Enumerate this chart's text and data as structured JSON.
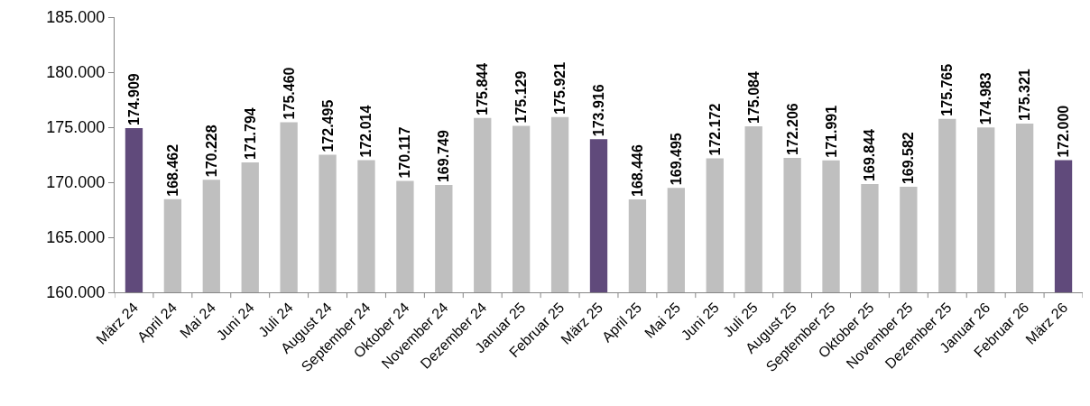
{
  "chart_data": {
    "type": "bar",
    "categories": [
      "März 24",
      "April 24",
      "Mai 24",
      "Juni 24",
      "Juli 24",
      "August 24",
      "September 24",
      "Oktober 24",
      "November 24",
      "Dezember 24",
      "Januar 25",
      "Februar 25",
      "März 25",
      "April 25",
      "Mai 25",
      "Juni 25",
      "Juli 25",
      "August 25",
      "September 25",
      "Oktober 25",
      "November 25",
      "Dezember 25",
      "Januar 26",
      "Februar 26",
      "März 26"
    ],
    "values": [
      174909,
      168462,
      170228,
      171794,
      175460,
      172495,
      172014,
      170117,
      169749,
      175844,
      175129,
      175921,
      173916,
      168446,
      169495,
      172172,
      175084,
      172206,
      171991,
      169844,
      169582,
      175765,
      174983,
      175321,
      172000
    ],
    "value_labels": [
      "174.909",
      "168.462",
      "170.228",
      "171.794",
      "175.460",
      "172.495",
      "172.014",
      "170.117",
      "169.749",
      "175.844",
      "175.129",
      "175.921",
      "173.916",
      "168.446",
      "169.495",
      "172.172",
      "175.084",
      "172.206",
      "171.991",
      "169.844",
      "169.582",
      "175.765",
      "174.983",
      "175.321",
      "172.000"
    ],
    "colors": [
      "#604a7b",
      "#bfbfbf",
      "#bfbfbf",
      "#bfbfbf",
      "#bfbfbf",
      "#bfbfbf",
      "#bfbfbf",
      "#bfbfbf",
      "#bfbfbf",
      "#bfbfbf",
      "#bfbfbf",
      "#bfbfbf",
      "#604a7b",
      "#bfbfbf",
      "#bfbfbf",
      "#bfbfbf",
      "#bfbfbf",
      "#bfbfbf",
      "#bfbfbf",
      "#bfbfbf",
      "#bfbfbf",
      "#bfbfbf",
      "#bfbfbf",
      "#bfbfbf",
      "#604a7b"
    ],
    "ylim": [
      160000,
      185000
    ],
    "yticks": [
      {
        "value": 160000,
        "label": "160.000"
      },
      {
        "value": 165000,
        "label": "165.000"
      },
      {
        "value": 170000,
        "label": "170.000"
      },
      {
        "value": 175000,
        "label": "175.000"
      },
      {
        "value": 180000,
        "label": "180.000"
      },
      {
        "value": 185000,
        "label": "185.000"
      }
    ]
  }
}
